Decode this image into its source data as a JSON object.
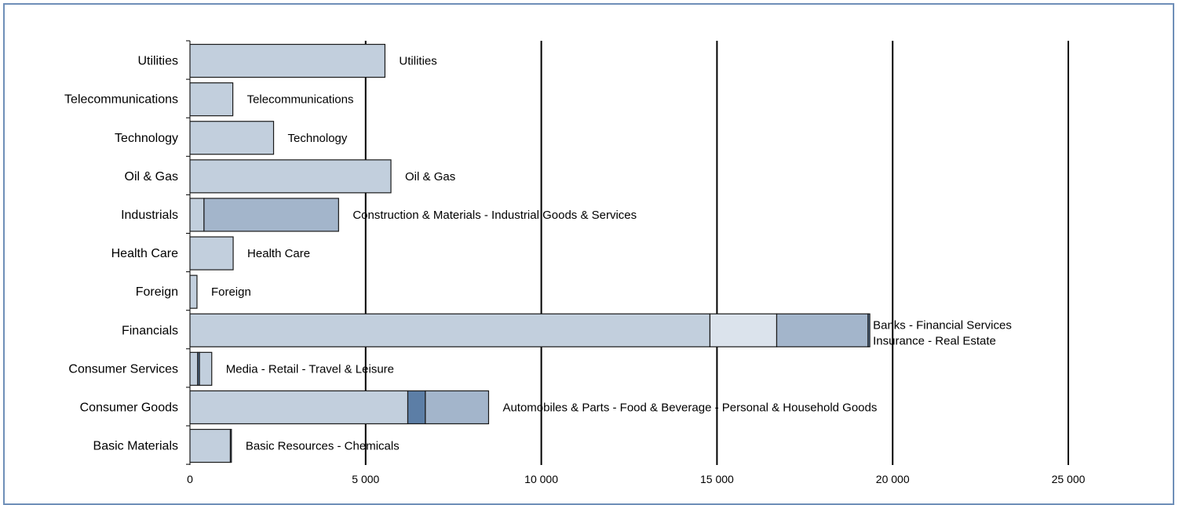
{
  "chart_data": {
    "type": "bar",
    "orientation": "horizontal",
    "stacked": true,
    "xlim": [
      0,
      25000
    ],
    "xticks": [
      0,
      5000,
      10000,
      15000,
      20000,
      25000
    ],
    "xtick_labels": [
      "0",
      "5 000",
      "10 000",
      "15 000",
      "20 000",
      "25 000"
    ],
    "grid": true,
    "categories": [
      "Basic Materials",
      "Consumer Goods",
      "Consumer Services",
      "Financials",
      "Foreign",
      "Health Care",
      "Industrials",
      "Oil & Gas",
      "Technology",
      "Telecommunications",
      "Utilities"
    ],
    "bars": [
      {
        "category": "Basic Materials",
        "segments": [
          1150,
          30
        ],
        "labels": [
          "Basic Resources - Chemicals"
        ]
      },
      {
        "category": "Consumer Goods",
        "segments": [
          6200,
          500,
          1800
        ],
        "labels": [
          "Automobiles & Parts - Food & Beverage  - Personal & Household Goods"
        ]
      },
      {
        "category": "Consumer Services",
        "segments": [
          220,
          50,
          350
        ],
        "labels": [
          "Media - Retail - Travel & Leisure"
        ]
      },
      {
        "category": "Financials",
        "segments": [
          14800,
          1900,
          2600,
          50
        ],
        "labels": [
          "Banks - Financial Services",
          "Insurance - Real Estate"
        ]
      },
      {
        "category": "Foreign",
        "segments": [
          200
        ],
        "labels": [
          "Foreign"
        ]
      },
      {
        "category": "Health Care",
        "segments": [
          1230
        ],
        "labels": [
          "Health Care"
        ]
      },
      {
        "category": "Industrials",
        "segments": [
          400,
          3830
        ],
        "labels": [
          "Construction & Materials - Industrial Goods & Services"
        ]
      },
      {
        "category": "Oil & Gas",
        "segments": [
          5720
        ],
        "labels": [
          "Oil & Gas"
        ]
      },
      {
        "category": "Technology",
        "segments": [
          2380
        ],
        "labels": [
          "Technology"
        ]
      },
      {
        "category": "Telecommunications",
        "segments": [
          1220
        ],
        "labels": [
          "Telecommunications"
        ]
      },
      {
        "category": "Utilities",
        "segments": [
          5550
        ],
        "labels": [
          "Utilities"
        ]
      }
    ],
    "segment_colors": [
      "#c2cfdd",
      "#dbe3ec",
      "#a3b5cb",
      "#5c7ea6"
    ],
    "segment_color_index": {
      "Basic Materials": [
        0,
        3
      ],
      "Consumer Goods": [
        0,
        3,
        2
      ],
      "Consumer Services": [
        0,
        3,
        0
      ],
      "Financials": [
        0,
        1,
        2,
        3
      ],
      "Foreign": [
        0
      ],
      "Health Care": [
        0
      ],
      "Industrials": [
        0,
        2
      ],
      "Oil & Gas": [
        0
      ],
      "Technology": [
        0
      ],
      "Telecommunications": [
        0
      ],
      "Utilities": [
        0
      ]
    },
    "frame_color": "#6f8fb8"
  }
}
